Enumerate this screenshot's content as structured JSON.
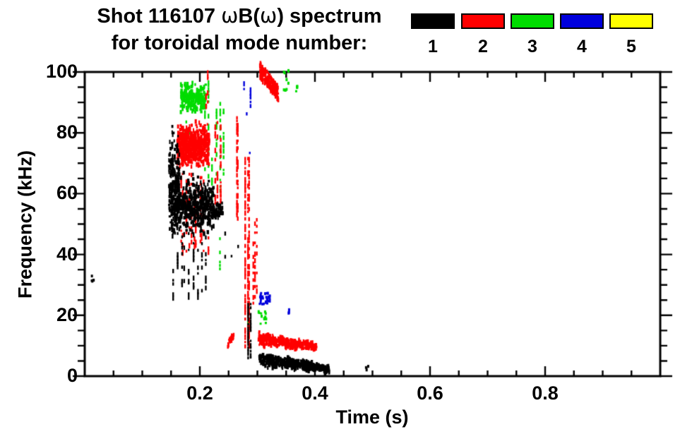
{
  "title": {
    "parts": [
      "Shot 116107 ",
      "ω",
      "B(",
      "ω",
      ") spectrum"
    ],
    "line2": "for toroidal mode number:"
  },
  "legend": {
    "entries": [
      {
        "label": "1",
        "color": "#000000"
      },
      {
        "label": "2",
        "color": "#ff0000"
      },
      {
        "label": "3",
        "color": "#00dc00"
      },
      {
        "label": "4",
        "color": "#0000dc"
      },
      {
        "label": "5",
        "color": "#ffff00"
      }
    ]
  },
  "chart_data": {
    "type": "scatter",
    "title": "Shot 116107 ωB(ω) spectrum for toroidal mode number: 1 2 3 4 5",
    "xlabel": "Time (s)",
    "ylabel": "Frequency (kHz)",
    "xlim": [
      0,
      1
    ],
    "ylim": [
      0,
      100
    ],
    "x_major_ticks": [
      0.2,
      0.4,
      0.6,
      0.8
    ],
    "x_tick_labels": [
      "0.2",
      "0.4",
      "0.6",
      "0.8"
    ],
    "x_minor_step": 0.05,
    "y_major_ticks": [
      0,
      20,
      40,
      60,
      80,
      100
    ],
    "y_tick_labels": [
      "0",
      "20",
      "40",
      "60",
      "80",
      "100"
    ],
    "y_minor_step": 5,
    "grid": false,
    "legend_position": "top-right",
    "modes": [
      {
        "mode": 1,
        "color": "#000000",
        "clusters": [
          {
            "kind": "dots",
            "t": [
              0.012,
              0.017
            ],
            "f": [
              31,
              33.5
            ],
            "n": 4
          },
          {
            "kind": "blob",
            "t": [
              0.146,
              0.164
            ],
            "f": [
              45,
              85
            ],
            "n": 180
          },
          {
            "kind": "blob",
            "t": [
              0.15,
              0.224
            ],
            "f": [
              44,
              68
            ],
            "n": 500
          },
          {
            "kind": "blob",
            "t": [
              0.222,
              0.239
            ],
            "f": [
              51,
              58
            ],
            "n": 55
          },
          {
            "kind": "vlines",
            "t": [
              0.15,
              0.213
            ],
            "f": [
              26,
              47
            ],
            "lines": 9,
            "density": 0.32
          },
          {
            "kind": "vlines",
            "t": [
              0.238,
              0.272
            ],
            "f": [
              35,
              50
            ],
            "lines": 3,
            "density": 0.15
          },
          {
            "kind": "vlines",
            "t": [
              0.282,
              0.289
            ],
            "f": [
              6,
              24
            ],
            "lines": 2,
            "density": 0.95
          },
          {
            "kind": "blob",
            "t": [
              0.302,
              0.425
            ],
            "f": [
              2.5,
              9
            ],
            "f_end": [
              1,
              4
            ],
            "n": 450
          },
          {
            "kind": "dots",
            "t": [
              0.486,
              0.493
            ],
            "f": [
              2,
              3.5
            ],
            "n": 3
          }
        ]
      },
      {
        "mode": 2,
        "color": "#ff0000",
        "clusters": [
          {
            "kind": "blob",
            "t": [
              0.16,
              0.216
            ],
            "f": [
              67,
              85
            ],
            "n": 540
          },
          {
            "kind": "vlines",
            "t": [
              0.165,
              0.215
            ],
            "f": [
              40,
              67
            ],
            "lines": 11,
            "density": 0.28
          },
          {
            "kind": "vlines",
            "t": [
              0.206,
              0.218
            ],
            "f": [
              88,
              101
            ],
            "lines": 2,
            "density": 0.45
          },
          {
            "kind": "vlines",
            "t": [
              0.225,
              0.237
            ],
            "f": [
              57,
              84
            ],
            "lines": 3,
            "density": 0.5
          },
          {
            "kind": "vlines",
            "t": [
              0.262,
              0.268
            ],
            "f": [
              52,
              86
            ],
            "lines": 2,
            "density": 0.5
          },
          {
            "kind": "vlines",
            "t": [
              0.276,
              0.287
            ],
            "f": [
              10,
              72
            ],
            "lines": 3,
            "density": 0.7
          },
          {
            "kind": "vlines",
            "t": [
              0.29,
              0.301
            ],
            "f": [
              24,
              52
            ],
            "lines": 3,
            "density": 0.38
          },
          {
            "kind": "diag",
            "t": [
              0.304,
              0.336
            ],
            "f": [
              101,
              93
            ],
            "n": 160,
            "thick": 5
          },
          {
            "kind": "diag",
            "t": [
              0.248,
              0.259
            ],
            "f": [
              10.5,
              14
            ],
            "n": 16,
            "thick": 2
          },
          {
            "kind": "blob",
            "t": [
              0.301,
              0.402
            ],
            "f": [
              9,
              16
            ],
            "f_end": [
              8,
              11.5
            ],
            "n": 350
          }
        ]
      },
      {
        "mode": 3,
        "color": "#00dc00",
        "clusters": [
          {
            "kind": "blob",
            "t": [
              0.166,
              0.21
            ],
            "f": [
              85,
              98
            ],
            "n": 210
          },
          {
            "kind": "vlines",
            "t": [
              0.17,
              0.182
            ],
            "f": [
              77,
              85
            ],
            "lines": 3,
            "density": 0.3
          },
          {
            "kind": "vlines",
            "t": [
              0.208,
              0.217
            ],
            "f": [
              66,
              97
            ],
            "lines": 2,
            "density": 0.32
          },
          {
            "kind": "vlines",
            "t": [
              0.219,
              0.224
            ],
            "f": [
              56,
              72
            ],
            "lines": 1,
            "density": 0.5
          },
          {
            "kind": "vlines",
            "t": [
              0.228,
              0.244
            ],
            "f": [
              60,
              90
            ],
            "lines": 3,
            "density": 0.4
          },
          {
            "kind": "vlines",
            "t": [
              0.231,
              0.236
            ],
            "f": [
              32,
              46
            ],
            "lines": 1,
            "density": 0.45
          },
          {
            "kind": "dots",
            "t": [
              0.302,
              0.316
            ],
            "f": [
              17,
              22
            ],
            "n": 12
          },
          {
            "kind": "dots",
            "t": [
              0.346,
              0.355
            ],
            "f": [
              94,
              101
            ],
            "n": 9
          },
          {
            "kind": "dots",
            "t": [
              0.367,
              0.372
            ],
            "f": [
              93,
              95.5
            ],
            "n": 4
          },
          {
            "kind": "dots",
            "t": [
              0.283,
              0.287
            ],
            "f": [
              16,
              18
            ],
            "n": 2
          }
        ]
      },
      {
        "mode": 4,
        "color": "#0000dc",
        "clusters": [
          {
            "kind": "vlines",
            "t": [
              0.2755,
              0.2795
            ],
            "f": [
              91,
              97
            ],
            "lines": 1,
            "density": 0.8
          },
          {
            "kind": "vlines",
            "t": [
              0.284,
              0.29
            ],
            "f": [
              89,
              94.5
            ],
            "lines": 1,
            "density": 0.8
          },
          {
            "kind": "vlines",
            "t": [
              0.28,
              0.284
            ],
            "f": [
              83,
              87
            ],
            "lines": 1,
            "density": 0.5
          },
          {
            "kind": "vlines",
            "t": [
              0.285,
              0.289
            ],
            "f": [
              70,
              83
            ],
            "lines": 1,
            "density": 0.2
          },
          {
            "kind": "dots",
            "t": [
              0.303,
              0.323
            ],
            "f": [
              23,
              27.5
            ],
            "n": 26
          },
          {
            "kind": "dots",
            "t": [
              0.352,
              0.357
            ],
            "f": [
              20,
              22
            ],
            "n": 3
          }
        ]
      },
      {
        "mode": 5,
        "color": "#ffff00",
        "clusters": []
      }
    ]
  }
}
